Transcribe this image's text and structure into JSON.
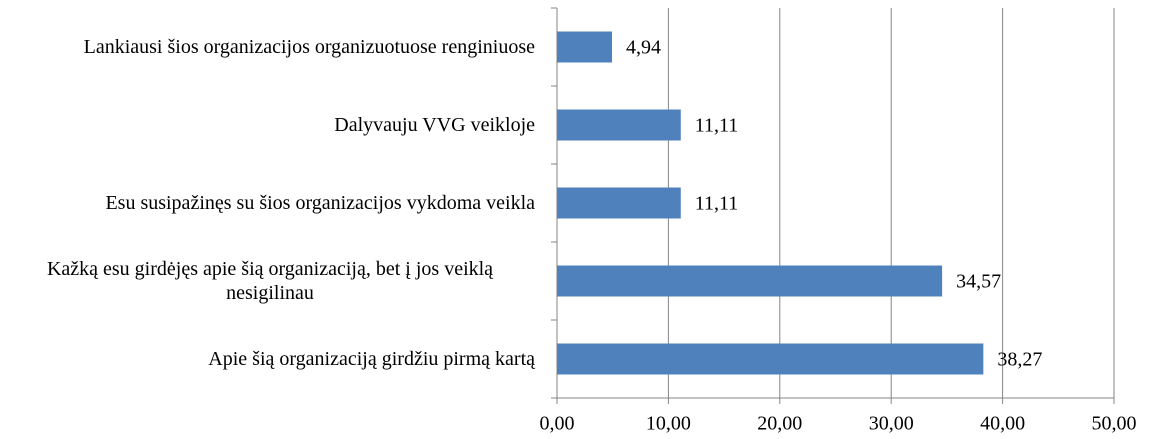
{
  "chart_data": {
    "type": "bar",
    "orientation": "horizontal",
    "categories": [
      "Lankiausi šios organizacijos organizuotuose renginiuose",
      "Dalyvauju VVG veikloje",
      "Esu susipažinęs su šios organizacijos vykdoma veikla",
      "Kažką esu girdėjęs apie šią organizaciją, bet į jos veiklą nesigilinau",
      "Apie šią organizaciją girdžiu pirmą kartą"
    ],
    "values": [
      4.94,
      11.11,
      11.11,
      34.57,
      38.27
    ],
    "value_labels": [
      "4,94",
      "11,11",
      "11,11",
      "34,57",
      "38,27"
    ],
    "color": "#4f81bd",
    "xlim": [
      0,
      50
    ],
    "xticks": [
      {
        "value": 0,
        "label": "0,00"
      },
      {
        "value": 10,
        "label": "10,00"
      },
      {
        "value": 20,
        "label": "20,00"
      },
      {
        "value": 30,
        "label": "30,00"
      },
      {
        "value": 40,
        "label": "40,00"
      },
      {
        "value": 50,
        "label": "50,00"
      }
    ],
    "grid": true
  }
}
